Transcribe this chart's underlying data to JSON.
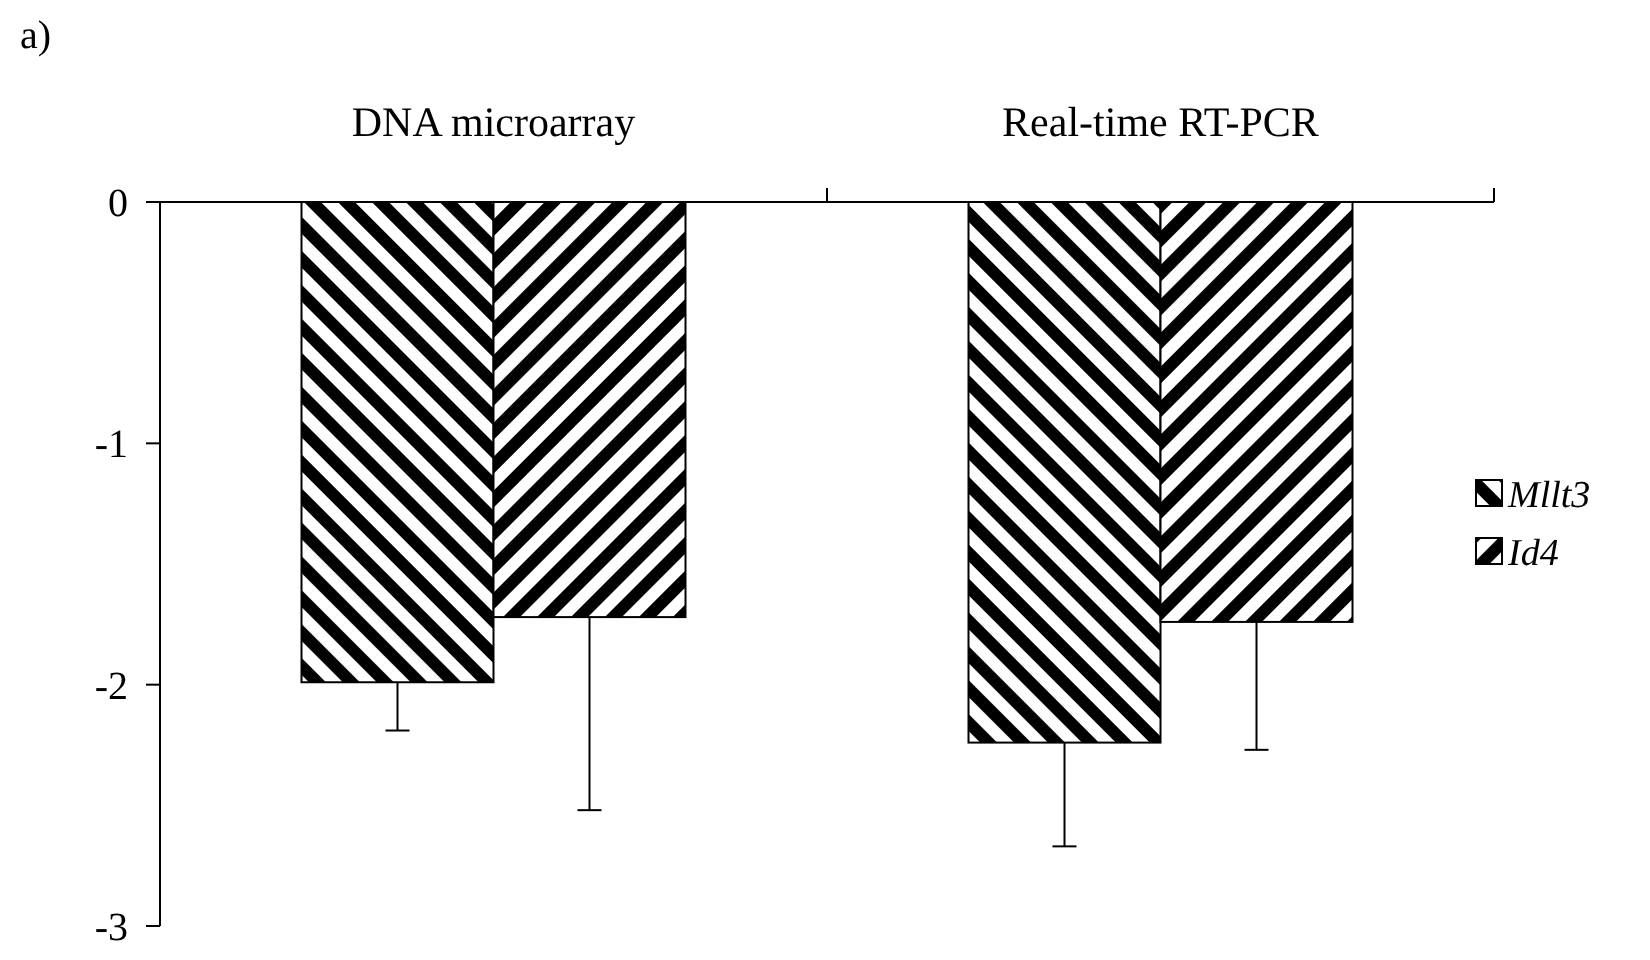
{
  "chart_data": {
    "type": "bar",
    "categories": [
      "DNA microarray",
      "Real-time RT-PCR"
    ],
    "series": [
      {
        "name": "Mllt3",
        "color": "#000000",
        "values": [
          -1.99,
          -2.24
        ],
        "errors": [
          [
            -2.19,
            -1.99
          ],
          [
            -2.67,
            -2.24
          ]
        ]
      },
      {
        "name": "Id4",
        "color": "#000000",
        "values": [
          -1.72,
          -1.74
        ],
        "errors": [
          [
            -2.52,
            -1.72
          ],
          [
            -2.27,
            -1.74
          ]
        ]
      }
    ],
    "ylim": [
      -3,
      0
    ],
    "yticks": [
      0,
      -1,
      -2,
      -3
    ],
    "grid": false,
    "legend": "right",
    "annotations": [
      "a)"
    ]
  }
}
